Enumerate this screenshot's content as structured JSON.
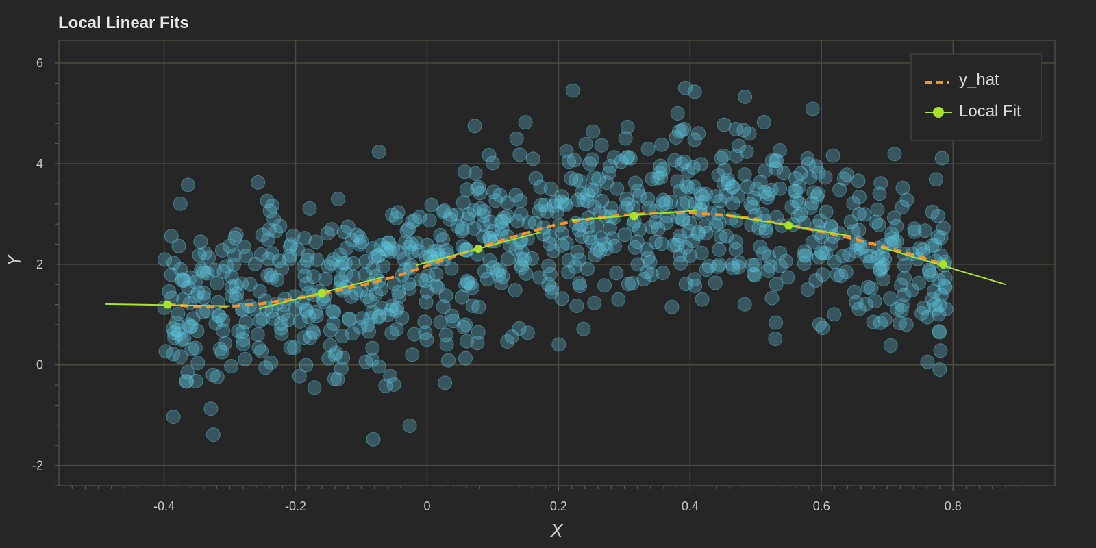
{
  "chart_data": {
    "type": "scatter",
    "title": "Local Linear Fits",
    "xlabel": "X",
    "ylabel": "Y",
    "xlim": [
      -0.56,
      0.955
    ],
    "ylim": [
      -2.4,
      6.45
    ],
    "x_ticks": [
      -0.4,
      -0.2,
      0,
      0.2,
      0.4,
      0.6,
      0.8
    ],
    "x_tick_labels": [
      "-0.4",
      "-0.2",
      "0",
      "0.2",
      "0.4",
      "0.6",
      "0.8"
    ],
    "y_ticks": [
      -2,
      0,
      2,
      4,
      6
    ],
    "y_tick_labels": [
      "-2",
      "0",
      "2",
      "4",
      "6"
    ],
    "grid": true,
    "legend_position": "top-right",
    "colors": {
      "background": "#262626",
      "grid": "#4a4a3e",
      "scatter": "#5fc8e0",
      "y_hat": "#f5922a",
      "local_fit": "#a8e22a"
    },
    "scatter": {
      "n": 900,
      "x_range": [
        -0.4,
        0.79
      ],
      "trend": "y_hat",
      "noise_sd": 0.95,
      "note": "noisy observations scattered around y_hat"
    },
    "series": [
      {
        "name": "y_hat",
        "style": "dashed",
        "x": [
          -0.395,
          -0.34,
          -0.3,
          -0.25,
          -0.2,
          -0.15,
          -0.1,
          -0.05,
          0,
          0.05,
          0.1,
          0.15,
          0.2,
          0.25,
          0.3,
          0.35,
          0.4,
          0.45,
          0.5,
          0.55,
          0.6,
          0.65,
          0.7,
          0.75,
          0.785
        ],
        "y": [
          1.2,
          1.15,
          1.16,
          1.22,
          1.32,
          1.44,
          1.58,
          1.75,
          1.97,
          2.2,
          2.42,
          2.62,
          2.8,
          2.91,
          2.98,
          3.02,
          3.02,
          2.98,
          2.9,
          2.78,
          2.65,
          2.5,
          2.33,
          2.15,
          2.0
        ]
      },
      {
        "name": "Local Fit",
        "style": "solid-with-markers",
        "centers": [
          {
            "x": -0.395,
            "y": 1.2
          },
          {
            "x": -0.16,
            "y": 1.43
          },
          {
            "x": 0.078,
            "y": 2.31
          },
          {
            "x": 0.315,
            "y": 2.96
          },
          {
            "x": 0.55,
            "y": 2.77
          },
          {
            "x": 0.785,
            "y": 2.0
          }
        ],
        "segments": [
          {
            "x": [
              -0.49,
              -0.3
            ],
            "y": [
              1.21,
              1.17
            ]
          },
          {
            "x": [
              -0.255,
              -0.065
            ],
            "y": [
              1.12,
              1.75
            ]
          },
          {
            "x": [
              -0.017,
              0.173
            ],
            "y": [
              1.98,
              2.64
            ]
          },
          {
            "x": [
              0.22,
              0.41
            ],
            "y": [
              2.88,
              3.07
            ]
          },
          {
            "x": [
              0.455,
              0.645
            ],
            "y": [
              2.98,
              2.56
            ]
          },
          {
            "x": [
              0.69,
              0.88
            ],
            "y": [
              2.34,
              1.6
            ]
          }
        ]
      }
    ],
    "legend": [
      "y_hat",
      "Local Fit"
    ]
  }
}
